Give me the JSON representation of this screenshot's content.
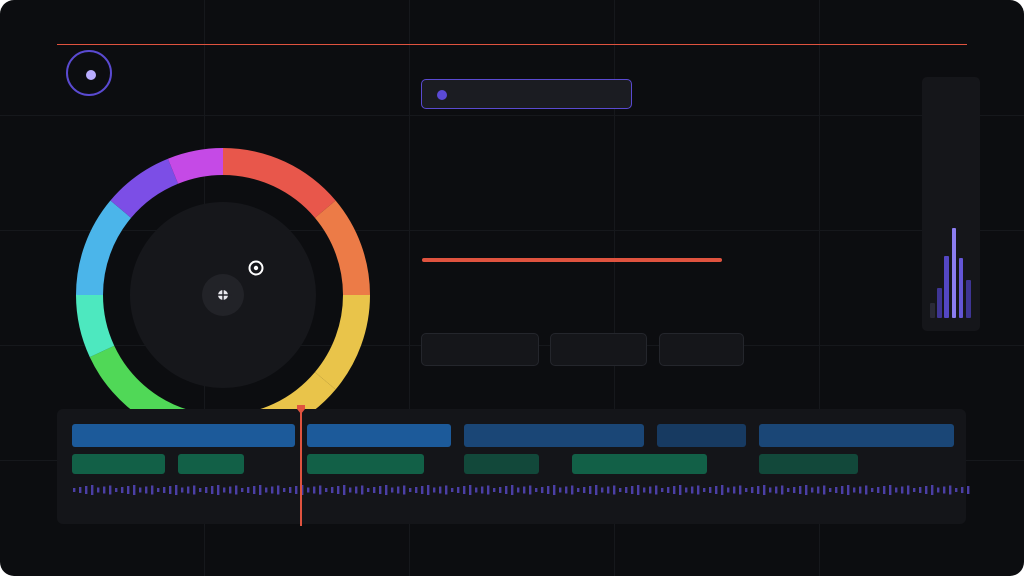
{
  "colors": {
    "background": "#0c0d10",
    "accent": "#5a4ad1",
    "accent_light": "#b9adff",
    "alert": "#e0533f",
    "panel": "#141519",
    "clip_blue": "#1c5a9a",
    "clip_blue_dim": "#1a4676",
    "clip_blue_dark": "#173a61",
    "clip_green": "#126047",
    "clip_green_dark": "#12483a",
    "waveform": "#4b3fa6"
  },
  "header": {
    "logo_icon": "logo-ring-icon"
  },
  "search": {
    "icon": "record-dot-icon",
    "value": ""
  },
  "color_wheel": {
    "picker_icon": "crosshair-icon",
    "target_icon": "target-icon",
    "segment_colors": [
      "#e8574b",
      "#ec7b47",
      "#e9c44a",
      "#e9c44a",
      "#50d857",
      "#4de8bf",
      "#4bb5ea",
      "#7c4ee6",
      "#c54ae6"
    ]
  },
  "progress": {
    "value": 1.0
  },
  "toolbar": {
    "buttons": [
      {
        "label": ""
      },
      {
        "label": ""
      },
      {
        "label": ""
      }
    ]
  },
  "meter": {
    "levels": [
      0.15,
      0.3,
      0.62,
      0.9,
      0.6,
      0.38
    ],
    "colors": [
      "#2a2a37",
      "#3e3594",
      "#5447c4",
      "#8b7df0",
      "#6456d6",
      "#3e3594"
    ]
  },
  "timeline": {
    "playhead_icon": "playhead-marker-icon",
    "video_track": [
      {
        "label": "",
        "color": "#1c5a9a"
      },
      {
        "label": "",
        "color": "#1c5a9a"
      },
      {
        "label": "",
        "color": "#1a4676"
      },
      {
        "label": "",
        "color": "#173a61"
      },
      {
        "label": "",
        "color": "#1a4676"
      }
    ],
    "audio_track": [
      {
        "label": "",
        "color": "#126047"
      },
      {
        "label": "",
        "color": "#126047"
      },
      {
        "label": "",
        "color": "#126047"
      },
      {
        "label": "",
        "color": "#12483a"
      },
      {
        "label": "",
        "color": "#126047"
      },
      {
        "label": "",
        "color": "#12483a"
      }
    ]
  }
}
